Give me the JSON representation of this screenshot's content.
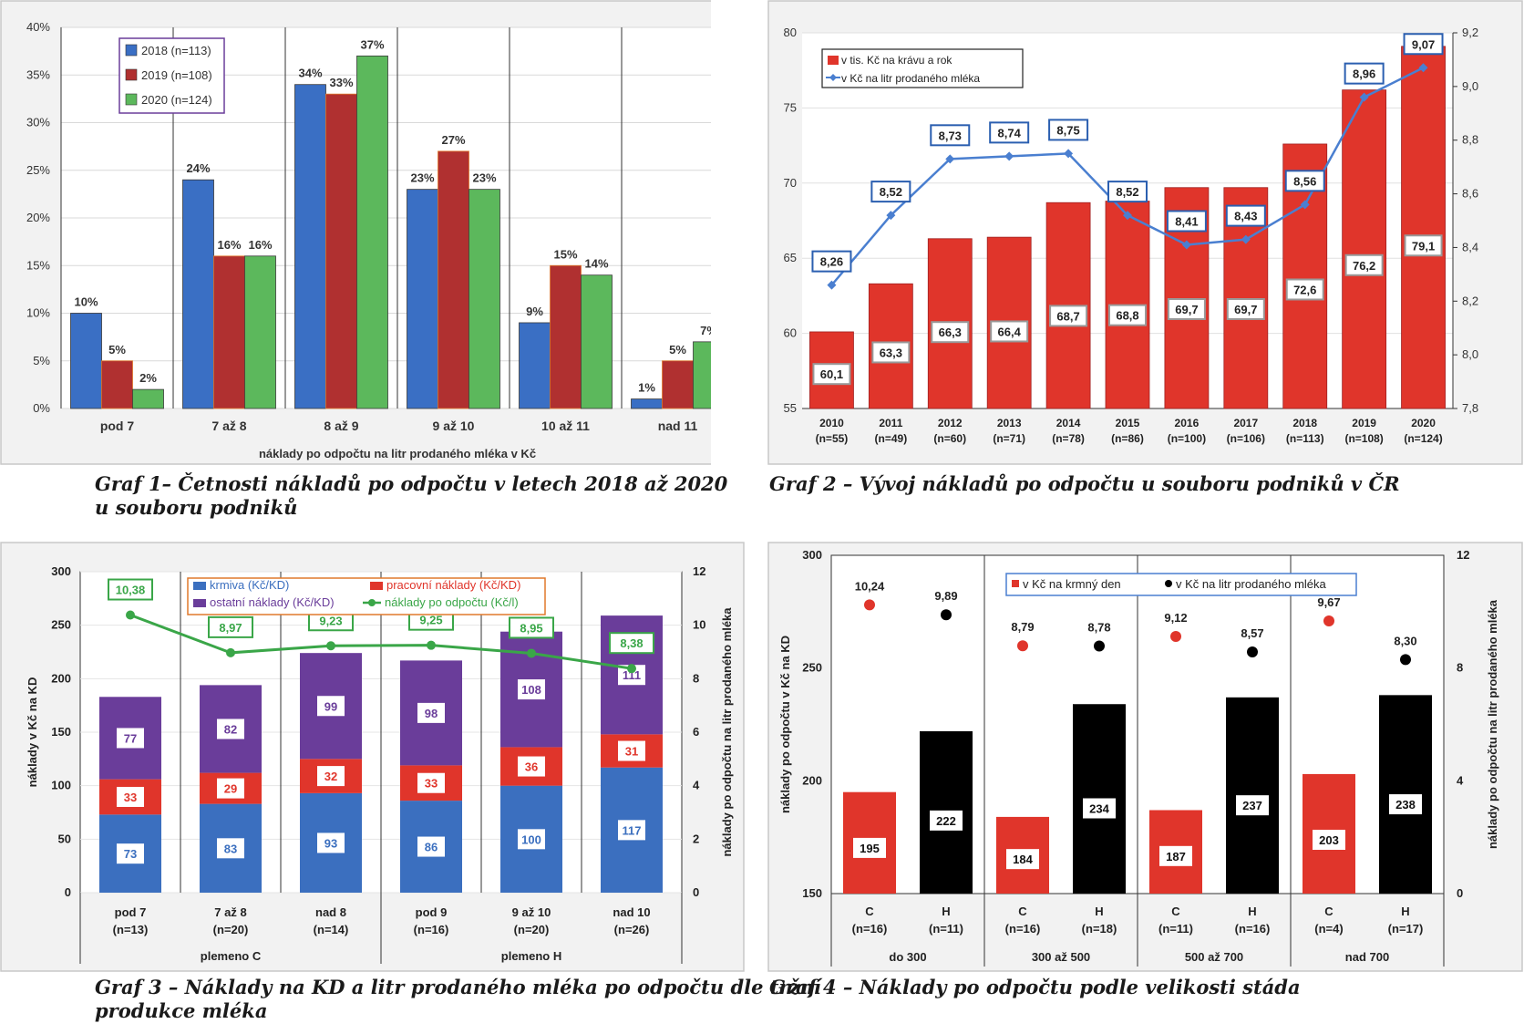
{
  "chart_data": [
    {
      "id": "graf1",
      "type": "bar",
      "caption_lines": [
        "Graf 1– Četnosti nákladů po odpočtu v letech 2018 až 2020",
        "u souboru podniků"
      ],
      "xlabel": "náklady po odpočtu na litr prodaného mléka v Kč",
      "ylim": [
        0,
        40
      ],
      "yticks": [
        "0%",
        "5%",
        "10%",
        "15%",
        "20%",
        "25%",
        "30%",
        "35%",
        "40%"
      ],
      "legend_position": "top-left",
      "categories": [
        "pod 7",
        "7 až 8",
        "8 až 9",
        "9 až 10",
        "10 až 11",
        "nad 11"
      ],
      "series": [
        {
          "name": "2018 (n=113)",
          "color": "#3a6fc4",
          "values": [
            10,
            24,
            34,
            23,
            9,
            1
          ],
          "labels": [
            "10%",
            "24%",
            "34%",
            "23%",
            "9%",
            "1%"
          ]
        },
        {
          "name": "2019 (n=108)",
          "color": "#b03030",
          "values": [
            5,
            16,
            33,
            27,
            15,
            5
          ],
          "labels": [
            "5%",
            "16%",
            "33%",
            "27%",
            "15%",
            "5%"
          ]
        },
        {
          "name": "2020 (n=124)",
          "color": "#5cb85c",
          "values": [
            2,
            16,
            37,
            23,
            14,
            7
          ],
          "labels": [
            "2%",
            "16%",
            "37%",
            "23%",
            "14%",
            "7%"
          ]
        }
      ]
    },
    {
      "id": "graf2",
      "type": "bar",
      "caption_lines": [
        "Graf 2 – Vývoj nákladů po odpočtu u souboru podniků v ČR"
      ],
      "ylim": [
        55,
        80
      ],
      "yticks": [
        "55",
        "60",
        "65",
        "70",
        "75",
        "80"
      ],
      "y2lim": [
        7.8,
        9.2
      ],
      "y2ticks": [
        "7,8",
        "8,0",
        "8,2",
        "8,4",
        "8,6",
        "8,8",
        "9,0",
        "9,2"
      ],
      "legend_position": "top-left",
      "categories": [
        "2010",
        "2011",
        "2012",
        "2013",
        "2014",
        "2015",
        "2016",
        "2017",
        "2018",
        "2019",
        "2020"
      ],
      "category_sub": [
        "(n=55)",
        "(n=49)",
        "(n=60)",
        "(n=71)",
        "(n=78)",
        "(n=86)",
        "(n=100)",
        "(n=106)",
        "(n=113)",
        "(n=108)",
        "(n=124)"
      ],
      "bars": {
        "name": "v tis. Kč na krávu a rok",
        "color": "#e0352b",
        "values": [
          60.1,
          63.3,
          66.3,
          66.4,
          68.7,
          68.8,
          69.7,
          69.7,
          72.6,
          76.2,
          79.1
        ],
        "labels": [
          "60,1",
          "63,3",
          "66,3",
          "66,4",
          "68,7",
          "68,8",
          "69,7",
          "69,7",
          "72,6",
          "76,2",
          "79,1"
        ]
      },
      "line": {
        "name": "v Kč na litr prodaného mléka",
        "color": "#4a7fd0",
        "values": [
          8.26,
          8.52,
          8.73,
          8.74,
          8.75,
          8.52,
          8.41,
          8.43,
          8.56,
          8.96,
          9.07
        ],
        "labels": [
          "8,26",
          "8,52",
          "8,73",
          "8,74",
          "8,75",
          "8,52",
          "8,41",
          "8,43",
          "8,56",
          "8,96",
          "9,07"
        ]
      }
    },
    {
      "id": "graf3",
      "type": "bar",
      "caption_lines": [
        "Graf 3 – Náklady na KD a litr prodaného mléka po odpočtu dle tržní",
        "produkce mléka"
      ],
      "ylabel": "náklady  v Kč na KD",
      "y2label": "náklady po odpočtu na litr prodaného mléka",
      "ylim": [
        0,
        300
      ],
      "yticks": [
        "0",
        "50",
        "100",
        "150",
        "200",
        "250",
        "300"
      ],
      "y2lim": [
        0,
        12
      ],
      "y2ticks": [
        "0",
        "2",
        "4",
        "6",
        "8",
        "10",
        "12"
      ],
      "legend_position": "top",
      "categories": [
        "pod 7",
        "7 až 8",
        "nad 8",
        "pod 9",
        "9 až 10",
        "nad 10"
      ],
      "category_sub": [
        "(n=13)",
        "(n=20)",
        "(n=14)",
        "(n=16)",
        "(n=20)",
        "(n=26)"
      ],
      "groups": [
        "plemeno C",
        "plemeno H"
      ],
      "stack": [
        {
          "name": "krmiva (Kč/KD)",
          "color": "#3b6fbf",
          "label_color": "#3b6fbf",
          "values": [
            73,
            83,
            93,
            86,
            100,
            117
          ]
        },
        {
          "name": "pracovní náklady (Kč/KD)",
          "color": "#e0352b",
          "label_color": "#e0352b",
          "values": [
            33,
            29,
            32,
            33,
            36,
            31
          ]
        },
        {
          "name": "ostatní náklady (Kč/KD)",
          "color": "#6a3d9a",
          "label_color": "#6a3d9a",
          "values": [
            77,
            82,
            99,
            98,
            108,
            111
          ]
        }
      ],
      "line": {
        "name": "náklady po odpočtu (Kč/l)",
        "color": "#3aa648",
        "values": [
          10.38,
          8.97,
          9.23,
          9.25,
          8.95,
          8.38
        ],
        "labels": [
          "10,38",
          "8,97",
          "9,23",
          "9,25",
          "8,95",
          "8,38"
        ]
      }
    },
    {
      "id": "graf4",
      "type": "bar",
      "caption_lines": [
        "Graf 4 – Náklady po odpočtu podle velikosti stáda"
      ],
      "ylabel": "náklady po odpočtu v Kč na KD",
      "y2label": "náklady po odpočtu na litr prodaného mléka",
      "ylim": [
        150,
        300
      ],
      "yticks": [
        "150",
        "200",
        "250",
        "300"
      ],
      "y2lim": [
        0,
        12
      ],
      "y2ticks": [
        "0",
        "4",
        "8",
        "12"
      ],
      "legend_position": "top",
      "legend": [
        {
          "name": "v Kč na krmný den",
          "color": "#e0352b"
        },
        {
          "name": "v Kč na litr prodaného mléka",
          "color": "#000000"
        }
      ],
      "categories": [
        "C",
        "H",
        "C",
        "H",
        "C",
        "H",
        "C",
        "H"
      ],
      "category_sub": [
        "(n=16)",
        "(n=11)",
        "(n=16)",
        "(n=18)",
        "(n=11)",
        "(n=16)",
        "(n=4)",
        "(n=17)"
      ],
      "groups": [
        "do 300",
        "300 až 500",
        "500 až 700",
        "nad 700"
      ],
      "bar_colors": [
        "#e0352b",
        "#000000",
        "#e0352b",
        "#000000",
        "#e0352b",
        "#000000",
        "#e0352b",
        "#000000"
      ],
      "values": [
        195,
        222,
        184,
        234,
        187,
        237,
        203,
        238
      ],
      "labels": [
        "195",
        "222",
        "184",
        "234",
        "187",
        "237",
        "203",
        "238"
      ],
      "dots": [
        10.24,
        9.89,
        8.79,
        8.78,
        9.12,
        8.57,
        9.67,
        8.3
      ],
      "dot_labels": [
        "10,24",
        "9,89",
        "8,79",
        "8,78",
        "9,12",
        "8,57",
        "9,67",
        "8,30"
      ]
    }
  ]
}
